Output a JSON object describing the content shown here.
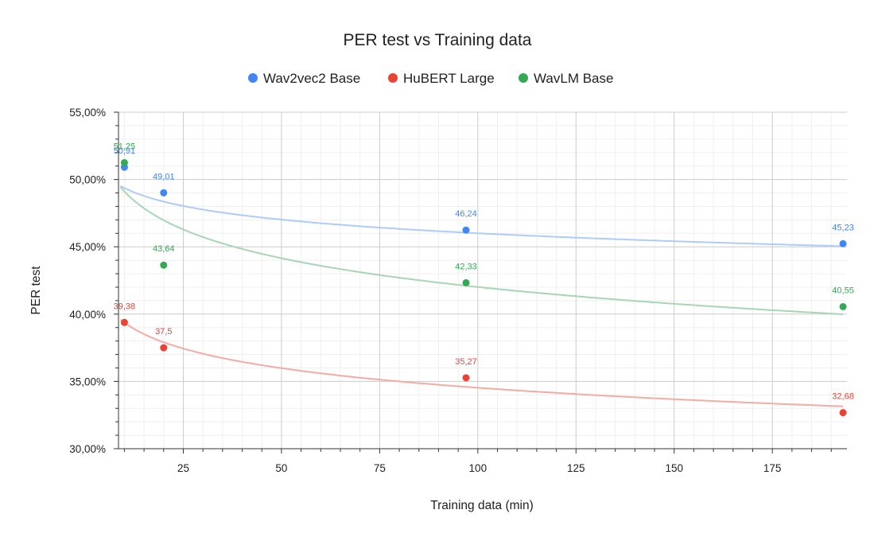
{
  "chart_data": {
    "type": "scatter",
    "title": "PER test vs Training data",
    "xlabel": "Training data (min)",
    "ylabel": "PER test",
    "xlim": [
      8.5,
      194
    ],
    "ylim": [
      30,
      55
    ],
    "x_ticks": [
      25,
      50,
      75,
      100,
      125,
      150,
      175
    ],
    "x_tick_labels": [
      "25",
      "50",
      "75",
      "100",
      "125",
      "150",
      "175"
    ],
    "y_ticks": [
      30,
      35,
      40,
      45,
      50,
      55
    ],
    "y_tick_labels": [
      "30,00%",
      "35,00%",
      "40,00%",
      "45,00%",
      "50,00%",
      "55,00%"
    ],
    "grid": true,
    "legend_position": "top-center",
    "trendline": "logarithmic",
    "series": [
      {
        "name": "Wav2vec2 Base",
        "color": "#4285f4",
        "trend_color": "#aecbfa",
        "points": [
          {
            "x": 10,
            "y": 50.91,
            "label": "50,91"
          },
          {
            "x": 20,
            "y": 49.01,
            "label": "49,01"
          },
          {
            "x": 97,
            "y": 46.24,
            "label": "46,24"
          },
          {
            "x": 193,
            "y": 45.23,
            "label": "45,23"
          }
        ],
        "trend": {
          "a": 52.73,
          "b": -1.46
        }
      },
      {
        "name": "HuBERT Large",
        "color": "#ea4335",
        "trend_color": "#f4aba4",
        "points": [
          {
            "x": 10,
            "y": 39.38,
            "label": "39,38"
          },
          {
            "x": 20,
            "y": 37.5,
            "label": "37,5"
          },
          {
            "x": 97,
            "y": 35.27,
            "label": "35,27"
          },
          {
            "x": 193,
            "y": 32.68,
            "label": "32,68"
          }
        ],
        "trend": {
          "a": 44.2,
          "b": -2.1
        }
      },
      {
        "name": "WavLM Base",
        "color": "#34a853",
        "trend_color": "#a8d5b5",
        "points": [
          {
            "x": 10,
            "y": 51.25,
            "label": "51,25"
          },
          {
            "x": 20,
            "y": 43.64,
            "label": "43,64"
          },
          {
            "x": 97,
            "y": 42.33,
            "label": "42,33"
          },
          {
            "x": 193,
            "y": 40.55,
            "label": "40,55"
          }
        ],
        "trend": {
          "a": 56.2,
          "b": -3.08
        }
      }
    ]
  }
}
